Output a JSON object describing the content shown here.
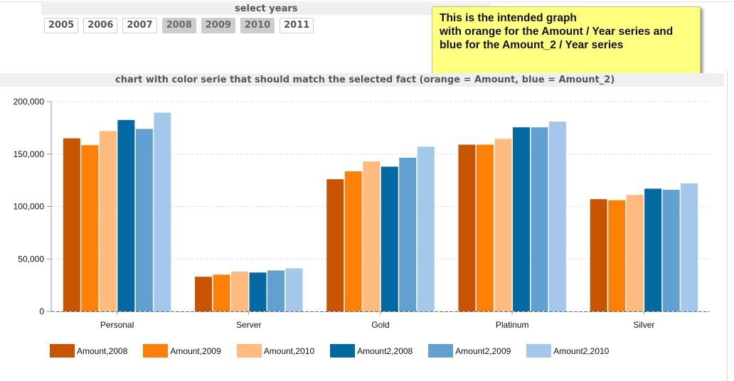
{
  "year_selector": {
    "title": "select years",
    "years": [
      {
        "label": "2005",
        "selected": false
      },
      {
        "label": "2006",
        "selected": false
      },
      {
        "label": "2007",
        "selected": false
      },
      {
        "label": "2008",
        "selected": true
      },
      {
        "label": "2009",
        "selected": true
      },
      {
        "label": "2010",
        "selected": true
      },
      {
        "label": "2011",
        "selected": false
      }
    ]
  },
  "note": {
    "lines": [
      "This is the intended graph",
      "with orange for the Amount / Year series and",
      "blue for the Amount_2 / Year series"
    ]
  },
  "chart_data": {
    "type": "bar",
    "title": "chart with color serie that should match the selected fact (orange = Amount, blue = Amount_2)",
    "xlabel": "",
    "ylabel": "",
    "ylim": [
      0,
      200000
    ],
    "yticks": [
      0,
      50000,
      100000,
      150000,
      200000
    ],
    "ytick_labels": [
      "0",
      "50,000",
      "100,000",
      "150,000",
      "200,000"
    ],
    "grid": true,
    "legend_position": "bottom-left",
    "categories": [
      "Personal",
      "Server",
      "Gold",
      "Platinum",
      "Silver"
    ],
    "series": [
      {
        "name": "Amount,2008",
        "color": "#c75400",
        "values": [
          165000,
          33000,
          126000,
          159000,
          107000
        ]
      },
      {
        "name": "Amount,2009",
        "color": "#fd8108",
        "values": [
          158500,
          35000,
          133500,
          159000,
          106000
        ]
      },
      {
        "name": "Amount,2010",
        "color": "#fdbb7f",
        "values": [
          172000,
          38000,
          143000,
          164500,
          111000
        ]
      },
      {
        "name": "Amount2,2008",
        "color": "#0369a3",
        "values": [
          182500,
          37000,
          138000,
          175500,
          117000
        ]
      },
      {
        "name": "Amount2,2009",
        "color": "#63a0d2",
        "values": [
          174000,
          39000,
          146500,
          175500,
          116000
        ]
      },
      {
        "name": "Amount2,2010",
        "color": "#a4c8ec",
        "values": [
          189500,
          41000,
          157000,
          181000,
          122000
        ]
      }
    ]
  }
}
